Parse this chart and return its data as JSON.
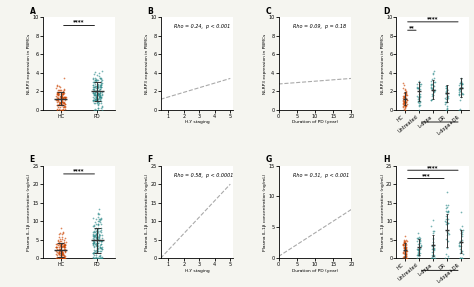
{
  "panel_labels": [
    "A",
    "B",
    "C",
    "D",
    "E",
    "F",
    "G",
    "H"
  ],
  "orange_color": "#CC4400",
  "teal_color": "#2E8B8B",
  "line_color": "#AAAAAA",
  "bg_color": "#F5F5F0",
  "panel_A": {
    "HC_n": 120,
    "PD_n": 160,
    "HC_mean": 1.2,
    "HC_std": 0.7,
    "PD_mean": 2.0,
    "PD_std": 1.0,
    "ylabel": "NLRP3 expression in PBMCs",
    "ylim": [
      0,
      10
    ],
    "yticks": [
      0,
      2,
      4,
      6,
      8,
      10
    ],
    "sig": "****"
  },
  "panel_B": {
    "xlabel": "H-Y staging",
    "ylabel": "NLRP3 expression in PBMCs",
    "xlim": [
      0.5,
      5
    ],
    "ylim": [
      0,
      10
    ],
    "xticks": [
      1,
      2,
      3,
      4,
      5
    ],
    "yticks": [
      0,
      2,
      4,
      6,
      8,
      10
    ],
    "rho": "Rho = 0.24,  p < 0.001",
    "slope": 0.5,
    "intercept": 0.9
  },
  "panel_C": {
    "xlabel": "Duration of PD (year)",
    "ylabel": "NLRP3 expression in PBMCs",
    "xlim": [
      0,
      20
    ],
    "ylim": [
      0,
      10
    ],
    "xticks": [
      0,
      5,
      10,
      15,
      20
    ],
    "yticks": [
      0,
      2,
      4,
      6,
      8,
      10
    ],
    "rho": "Rho = 0.09,  p = 0.18",
    "slope": 0.03,
    "intercept": 2.8
  },
  "panel_D": {
    "groups": [
      "HC",
      "Untreated",
      "L-dopa",
      "DR",
      "L-dopa+DR"
    ],
    "ylabel": "NLRP3 expression in PBMCs",
    "ylim": [
      0,
      10
    ],
    "yticks": [
      0,
      2,
      4,
      6,
      8,
      10
    ],
    "means": [
      1.2,
      2.0,
      2.2,
      1.8,
      2.4
    ],
    "stds": [
      0.7,
      1.0,
      1.0,
      0.9,
      1.0
    ],
    "ns": [
      60,
      30,
      30,
      30,
      30
    ]
  },
  "panel_E": {
    "HC_n": 120,
    "PD_n": 160,
    "HC_mean": 2.2,
    "HC_std": 1.8,
    "PD_mean": 4.8,
    "PD_std": 3.5,
    "ylabel": "Plasma IL-1β concentration (ng/mL)",
    "ylim": [
      0,
      25
    ],
    "yticks": [
      0,
      5,
      10,
      15,
      20,
      25
    ],
    "sig": "****"
  },
  "panel_F": {
    "xlabel": "H-Y staging",
    "ylabel": "Plasma IL-1β concentration (ng/mL)",
    "xlim": [
      0.5,
      5
    ],
    "ylim": [
      0,
      25
    ],
    "xticks": [
      1,
      2,
      3,
      4,
      5
    ],
    "yticks": [
      0,
      5,
      10,
      15,
      20,
      25
    ],
    "rho": "Rho = 0.58,  p < 0.0001",
    "slope": 4.8,
    "intercept": -4.0
  },
  "panel_G": {
    "xlabel": "Duration of PD (year)",
    "ylabel": "Plasma IL-1β concentration (ng/mL)",
    "xlim": [
      0,
      20
    ],
    "ylim": [
      0,
      15
    ],
    "xticks": [
      0,
      5,
      10,
      15,
      20
    ],
    "yticks": [
      0,
      5,
      10,
      15
    ],
    "rho": "Rho = 0.31,  p < 0.001",
    "slope": 0.38,
    "intercept": 0.3
  },
  "panel_H": {
    "groups": [
      "HC",
      "Untreated",
      "L-dopa",
      "DR",
      "L-dopa+DR"
    ],
    "ylabel": "Plasma IL-1β concentration (ng/mL)",
    "ylim": [
      0,
      25
    ],
    "yticks": [
      0,
      5,
      10,
      15,
      20,
      25
    ],
    "means": [
      2.2,
      3.0,
      3.5,
      7.5,
      4.5
    ],
    "stds": [
      1.8,
      2.2,
      2.8,
      4.5,
      3.2
    ],
    "ns": [
      60,
      30,
      30,
      30,
      30
    ]
  },
  "tick_fontsize": 3.5,
  "label_fontsize": 3.2,
  "panel_label_fontsize": 5.5,
  "annot_fontsize": 3.5
}
